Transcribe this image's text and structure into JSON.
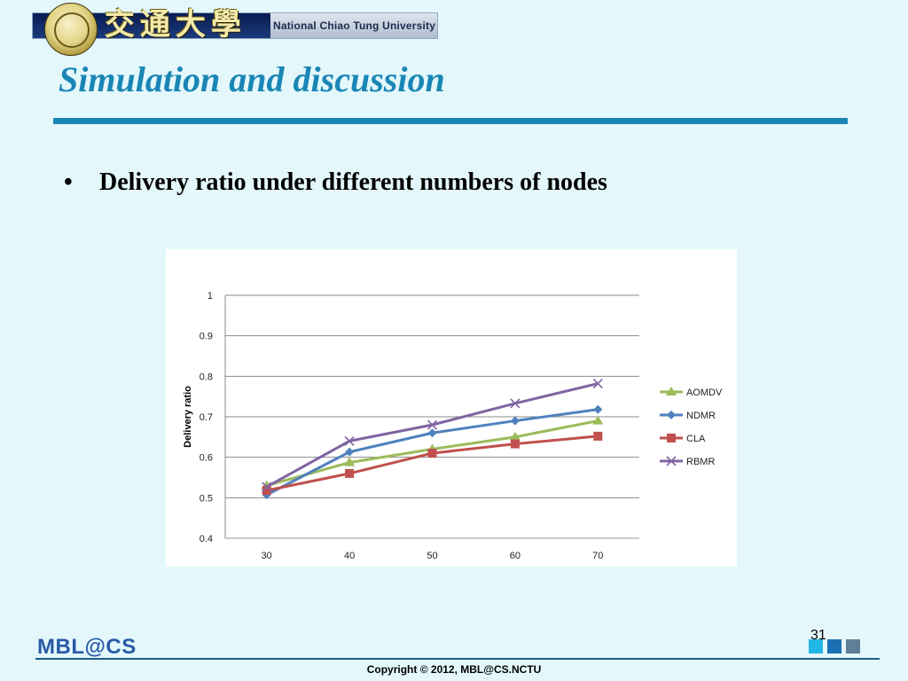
{
  "header": {
    "calligraphy": "交通大學",
    "university": "National Chiao Tung University"
  },
  "slide": {
    "title": "Simulation and discussion",
    "bullet": "Delivery ratio under different numbers of nodes",
    "page_number": "31"
  },
  "footer": {
    "logo": "MBL@CS",
    "copyright": "Copyright © 2012, MBL@CS.NCTU"
  },
  "colors": {
    "background": "#e4f8fc",
    "title": "#1a86b5",
    "AOMDV": "#9bbb59",
    "NDMR": "#4f81bd",
    "CLA": "#c0504d",
    "RBMR": "#8064a2"
  },
  "chart_data": {
    "type": "line",
    "title": "",
    "xlabel": "",
    "ylabel": "Delivery ratio",
    "categories": [
      "30",
      "40",
      "50",
      "60",
      "70"
    ],
    "ylim": [
      0.4,
      1
    ],
    "yticks": [
      "0.4",
      "0.5",
      "0.6",
      "0.7",
      "0.8",
      "0.9",
      "1"
    ],
    "grid": true,
    "legend_position": "right",
    "series": [
      {
        "name": "AOMDV",
        "marker": "triangle",
        "color": "#9bbb59",
        "values": [
          0.53,
          0.587,
          0.62,
          0.65,
          0.69
        ]
      },
      {
        "name": "NDMR",
        "marker": "diamond",
        "color": "#4f81bd",
        "values": [
          0.507,
          0.613,
          0.66,
          0.69,
          0.718
        ]
      },
      {
        "name": "CLA",
        "marker": "square",
        "color": "#c0504d",
        "values": [
          0.518,
          0.56,
          0.61,
          0.633,
          0.652
        ]
      },
      {
        "name": "RBMR",
        "marker": "x",
        "color": "#8064a2",
        "values": [
          0.527,
          0.64,
          0.68,
          0.733,
          0.782
        ]
      }
    ]
  }
}
